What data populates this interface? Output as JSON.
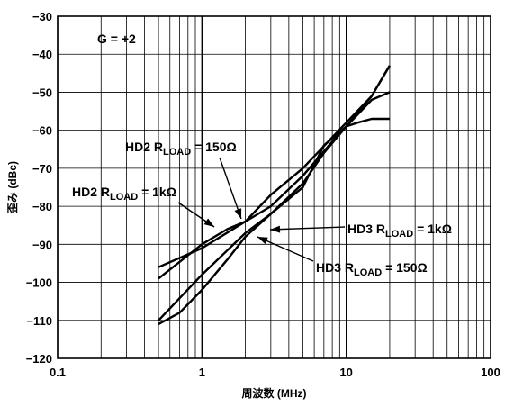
{
  "chart_data": {
    "type": "line",
    "xscale": "log",
    "xlim": [
      0.1,
      100
    ],
    "ylim": [
      -120,
      -30
    ],
    "xlabel": "周波数 (MHz)",
    "ylabel": "歪み (dBc)",
    "grid": true,
    "x_ticks": [
      "0.1",
      "1",
      "10",
      "100"
    ],
    "y_ticks": [
      "−30",
      "−40",
      "−50",
      "−60",
      "−70",
      "−80",
      "−90",
      "−100",
      "−110",
      "−120"
    ],
    "gain_label": "G = +2",
    "annotations": [
      {
        "id": "hd2_150",
        "main": "HD2 R",
        "sub": "LOAD",
        "tail": " = 150Ω"
      },
      {
        "id": "hd2_1k",
        "main": "HD2 R",
        "sub": "LOAD",
        "tail": " = 1kΩ"
      },
      {
        "id": "hd3_1k",
        "main": "HD3 R",
        "sub": "LOAD",
        "tail": " = 1kΩ"
      },
      {
        "id": "hd3_150",
        "main": "HD3 R",
        "sub": "LOAD",
        "tail": " = 150Ω"
      }
    ],
    "series": [
      {
        "id": "hd2_150",
        "x": [
          0.5,
          1,
          2,
          3,
          5,
          8,
          10,
          15,
          20
        ],
        "y": [
          -96,
          -91,
          -84,
          -80,
          -72,
          -63,
          -59,
          -52,
          -50
        ]
      },
      {
        "id": "hd2_1k",
        "x": [
          0.5,
          1,
          1.5,
          2,
          3,
          5,
          10,
          15,
          20
        ],
        "y": [
          -99,
          -90,
          -86,
          -84,
          -77,
          -70,
          -58,
          -51,
          -43
        ]
      },
      {
        "id": "hd3_1k",
        "x": [
          0.5,
          0.7,
          1,
          1.5,
          2,
          3,
          5,
          7,
          10,
          12,
          15,
          20
        ],
        "y": [
          -111,
          -108,
          -102,
          -94,
          -88,
          -82,
          -75,
          -64,
          -59,
          -58,
          -57,
          -57
        ]
      },
      {
        "id": "hd3_150",
        "x": [
          0.5,
          1,
          2,
          3,
          5,
          7,
          10,
          15,
          20
        ],
        "y": [
          -110,
          -98,
          -87,
          -82,
          -74,
          -66,
          -59,
          -51,
          -43
        ]
      }
    ]
  }
}
